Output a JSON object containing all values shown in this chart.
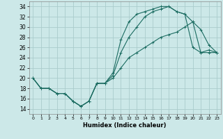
{
  "xlabel": "Humidex (Indice chaleur)",
  "bg_color": "#cce8e8",
  "grid_color": "#aacccc",
  "line_color": "#1a6b60",
  "xlim": [
    -0.5,
    23.5
  ],
  "ylim": [
    13,
    35
  ],
  "xticks": [
    0,
    1,
    2,
    3,
    4,
    5,
    6,
    7,
    8,
    9,
    10,
    11,
    12,
    13,
    14,
    15,
    16,
    17,
    18,
    19,
    20,
    21,
    22,
    23
  ],
  "yticks": [
    14,
    16,
    18,
    20,
    22,
    24,
    26,
    28,
    30,
    32,
    34
  ],
  "line1_x": [
    0,
    1,
    2,
    3,
    4,
    5,
    6,
    7,
    8,
    9,
    10,
    11,
    12,
    13,
    14,
    15,
    16,
    17,
    18,
    19,
    20,
    21,
    22,
    23
  ],
  "line1_y": [
    20,
    18,
    18,
    17,
    17,
    15.5,
    14.5,
    15.5,
    19,
    19,
    21,
    27.5,
    31,
    32.5,
    33,
    33.5,
    34,
    34,
    33,
    32.5,
    31,
    29.5,
    26.5,
    25
  ],
  "line2_x": [
    0,
    1,
    2,
    3,
    4,
    5,
    6,
    7,
    8,
    9,
    10,
    11,
    12,
    13,
    14,
    15,
    16,
    17,
    18,
    19,
    20,
    21,
    22,
    23
  ],
  "line2_y": [
    20,
    18,
    18,
    17,
    17,
    15.5,
    14.5,
    15.5,
    19,
    19,
    20.5,
    25,
    28,
    30,
    32,
    33,
    33.5,
    34,
    33,
    32.5,
    26,
    25,
    25,
    25
  ],
  "line3_x": [
    0,
    1,
    2,
    3,
    4,
    5,
    6,
    7,
    8,
    9,
    10,
    11,
    12,
    13,
    14,
    15,
    16,
    17,
    18,
    19,
    20,
    21,
    22,
    23
  ],
  "line3_y": [
    20,
    18,
    18,
    17,
    17,
    15.5,
    14.5,
    15.5,
    19,
    19,
    20,
    22,
    24,
    25,
    26,
    27,
    28,
    28.5,
    29,
    30,
    31,
    25,
    25.5,
    25
  ]
}
